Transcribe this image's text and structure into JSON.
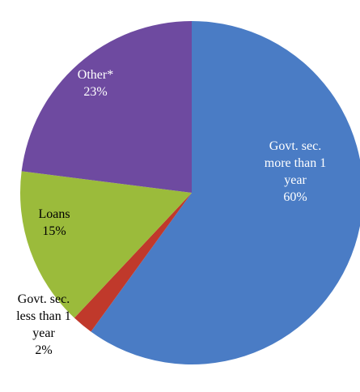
{
  "chart_data": {
    "type": "pie",
    "title": "",
    "slices": [
      {
        "label": [
          "Govt. sec.",
          "more than 1",
          "year"
        ],
        "value": 60,
        "value_label": "60%",
        "color": "#4a7cc5",
        "label_color": "#ffffff"
      },
      {
        "label": [
          "Govt. sec.",
          "less than 1",
          "year"
        ],
        "value": 2,
        "value_label": "2%",
        "color": "#c0392b",
        "label_color": "#000000"
      },
      {
        "label": [
          "Loans"
        ],
        "value": 15,
        "value_label": "15%",
        "color": "#9bbb3b",
        "label_color": "#000000"
      },
      {
        "label": [
          "Other*"
        ],
        "value": 23,
        "value_label": "23%",
        "color": "#6e4aa0",
        "label_color": "#ffffff"
      }
    ]
  }
}
